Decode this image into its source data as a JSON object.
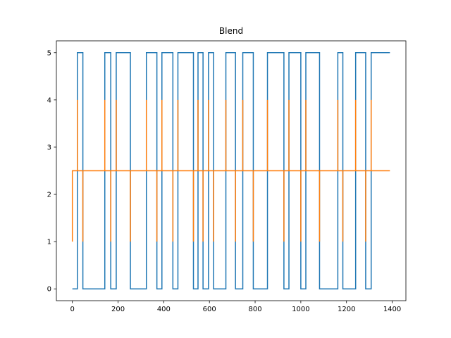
{
  "chart_data": {
    "type": "line",
    "title": "Blend",
    "xlabel": "",
    "ylabel": "",
    "xlim": [
      -70,
      1460
    ],
    "ylim": [
      -0.25,
      5.25
    ],
    "xticks": [
      0,
      200,
      400,
      600,
      800,
      1000,
      1200,
      1400
    ],
    "yticks": [
      0,
      1,
      2,
      3,
      4,
      5
    ],
    "grid": false,
    "series": [
      {
        "color": "#1f77b4",
        "step": "post",
        "x": [
          0,
          22,
          22,
          46,
          46,
          142,
          142,
          168,
          168,
          192,
          192,
          254,
          254,
          324,
          324,
          370,
          370,
          392,
          392,
          440,
          440,
          462,
          462,
          530,
          530,
          550,
          550,
          572,
          572,
          596,
          596,
          618,
          618,
          672,
          672,
          714,
          714,
          746,
          746,
          792,
          792,
          854,
          854,
          926,
          926,
          948,
          948,
          1000,
          1000,
          1022,
          1022,
          1082,
          1082,
          1162,
          1162,
          1184,
          1184,
          1240,
          1240,
          1284,
          1284,
          1308,
          1308,
          1390
        ],
        "y": [
          0,
          0,
          5,
          5,
          0,
          0,
          5,
          5,
          0,
          0,
          5,
          5,
          0,
          0,
          5,
          5,
          0,
          0,
          5,
          5,
          0,
          0,
          5,
          5,
          0,
          0,
          5,
          5,
          0,
          0,
          5,
          5,
          0,
          0,
          5,
          5,
          0,
          0,
          5,
          5,
          0,
          0,
          5,
          5,
          0,
          0,
          5,
          5,
          0,
          0,
          5,
          5,
          0,
          0,
          5,
          5,
          0,
          0,
          5,
          5,
          0,
          0,
          5,
          5
        ]
      },
      {
        "color": "#ff7f0e",
        "baseline": 2.5,
        "x_start": 0,
        "x_end": 1390,
        "spikes": [
          {
            "x": 0,
            "y": 1
          },
          {
            "x": 22,
            "y": 4
          },
          {
            "x": 46,
            "y": 1
          },
          {
            "x": 142,
            "y": 4
          },
          {
            "x": 168,
            "y": 1
          },
          {
            "x": 192,
            "y": 4
          },
          {
            "x": 254,
            "y": 1
          },
          {
            "x": 324,
            "y": 4
          },
          {
            "x": 370,
            "y": 1
          },
          {
            "x": 392,
            "y": 4
          },
          {
            "x": 440,
            "y": 1
          },
          {
            "x": 462,
            "y": 4
          },
          {
            "x": 530,
            "y": 1
          },
          {
            "x": 550,
            "y": 4
          },
          {
            "x": 572,
            "y": 1
          },
          {
            "x": 596,
            "y": 4
          },
          {
            "x": 618,
            "y": 1
          },
          {
            "x": 672,
            "y": 4
          },
          {
            "x": 714,
            "y": 1
          },
          {
            "x": 746,
            "y": 4
          },
          {
            "x": 792,
            "y": 1
          },
          {
            "x": 854,
            "y": 4
          },
          {
            "x": 926,
            "y": 1
          },
          {
            "x": 948,
            "y": 4
          },
          {
            "x": 1000,
            "y": 1
          },
          {
            "x": 1022,
            "y": 4
          },
          {
            "x": 1082,
            "y": 1
          },
          {
            "x": 1162,
            "y": 4
          },
          {
            "x": 1184,
            "y": 1
          },
          {
            "x": 1240,
            "y": 4
          },
          {
            "x": 1284,
            "y": 1
          },
          {
            "x": 1308,
            "y": 4
          }
        ]
      }
    ]
  }
}
